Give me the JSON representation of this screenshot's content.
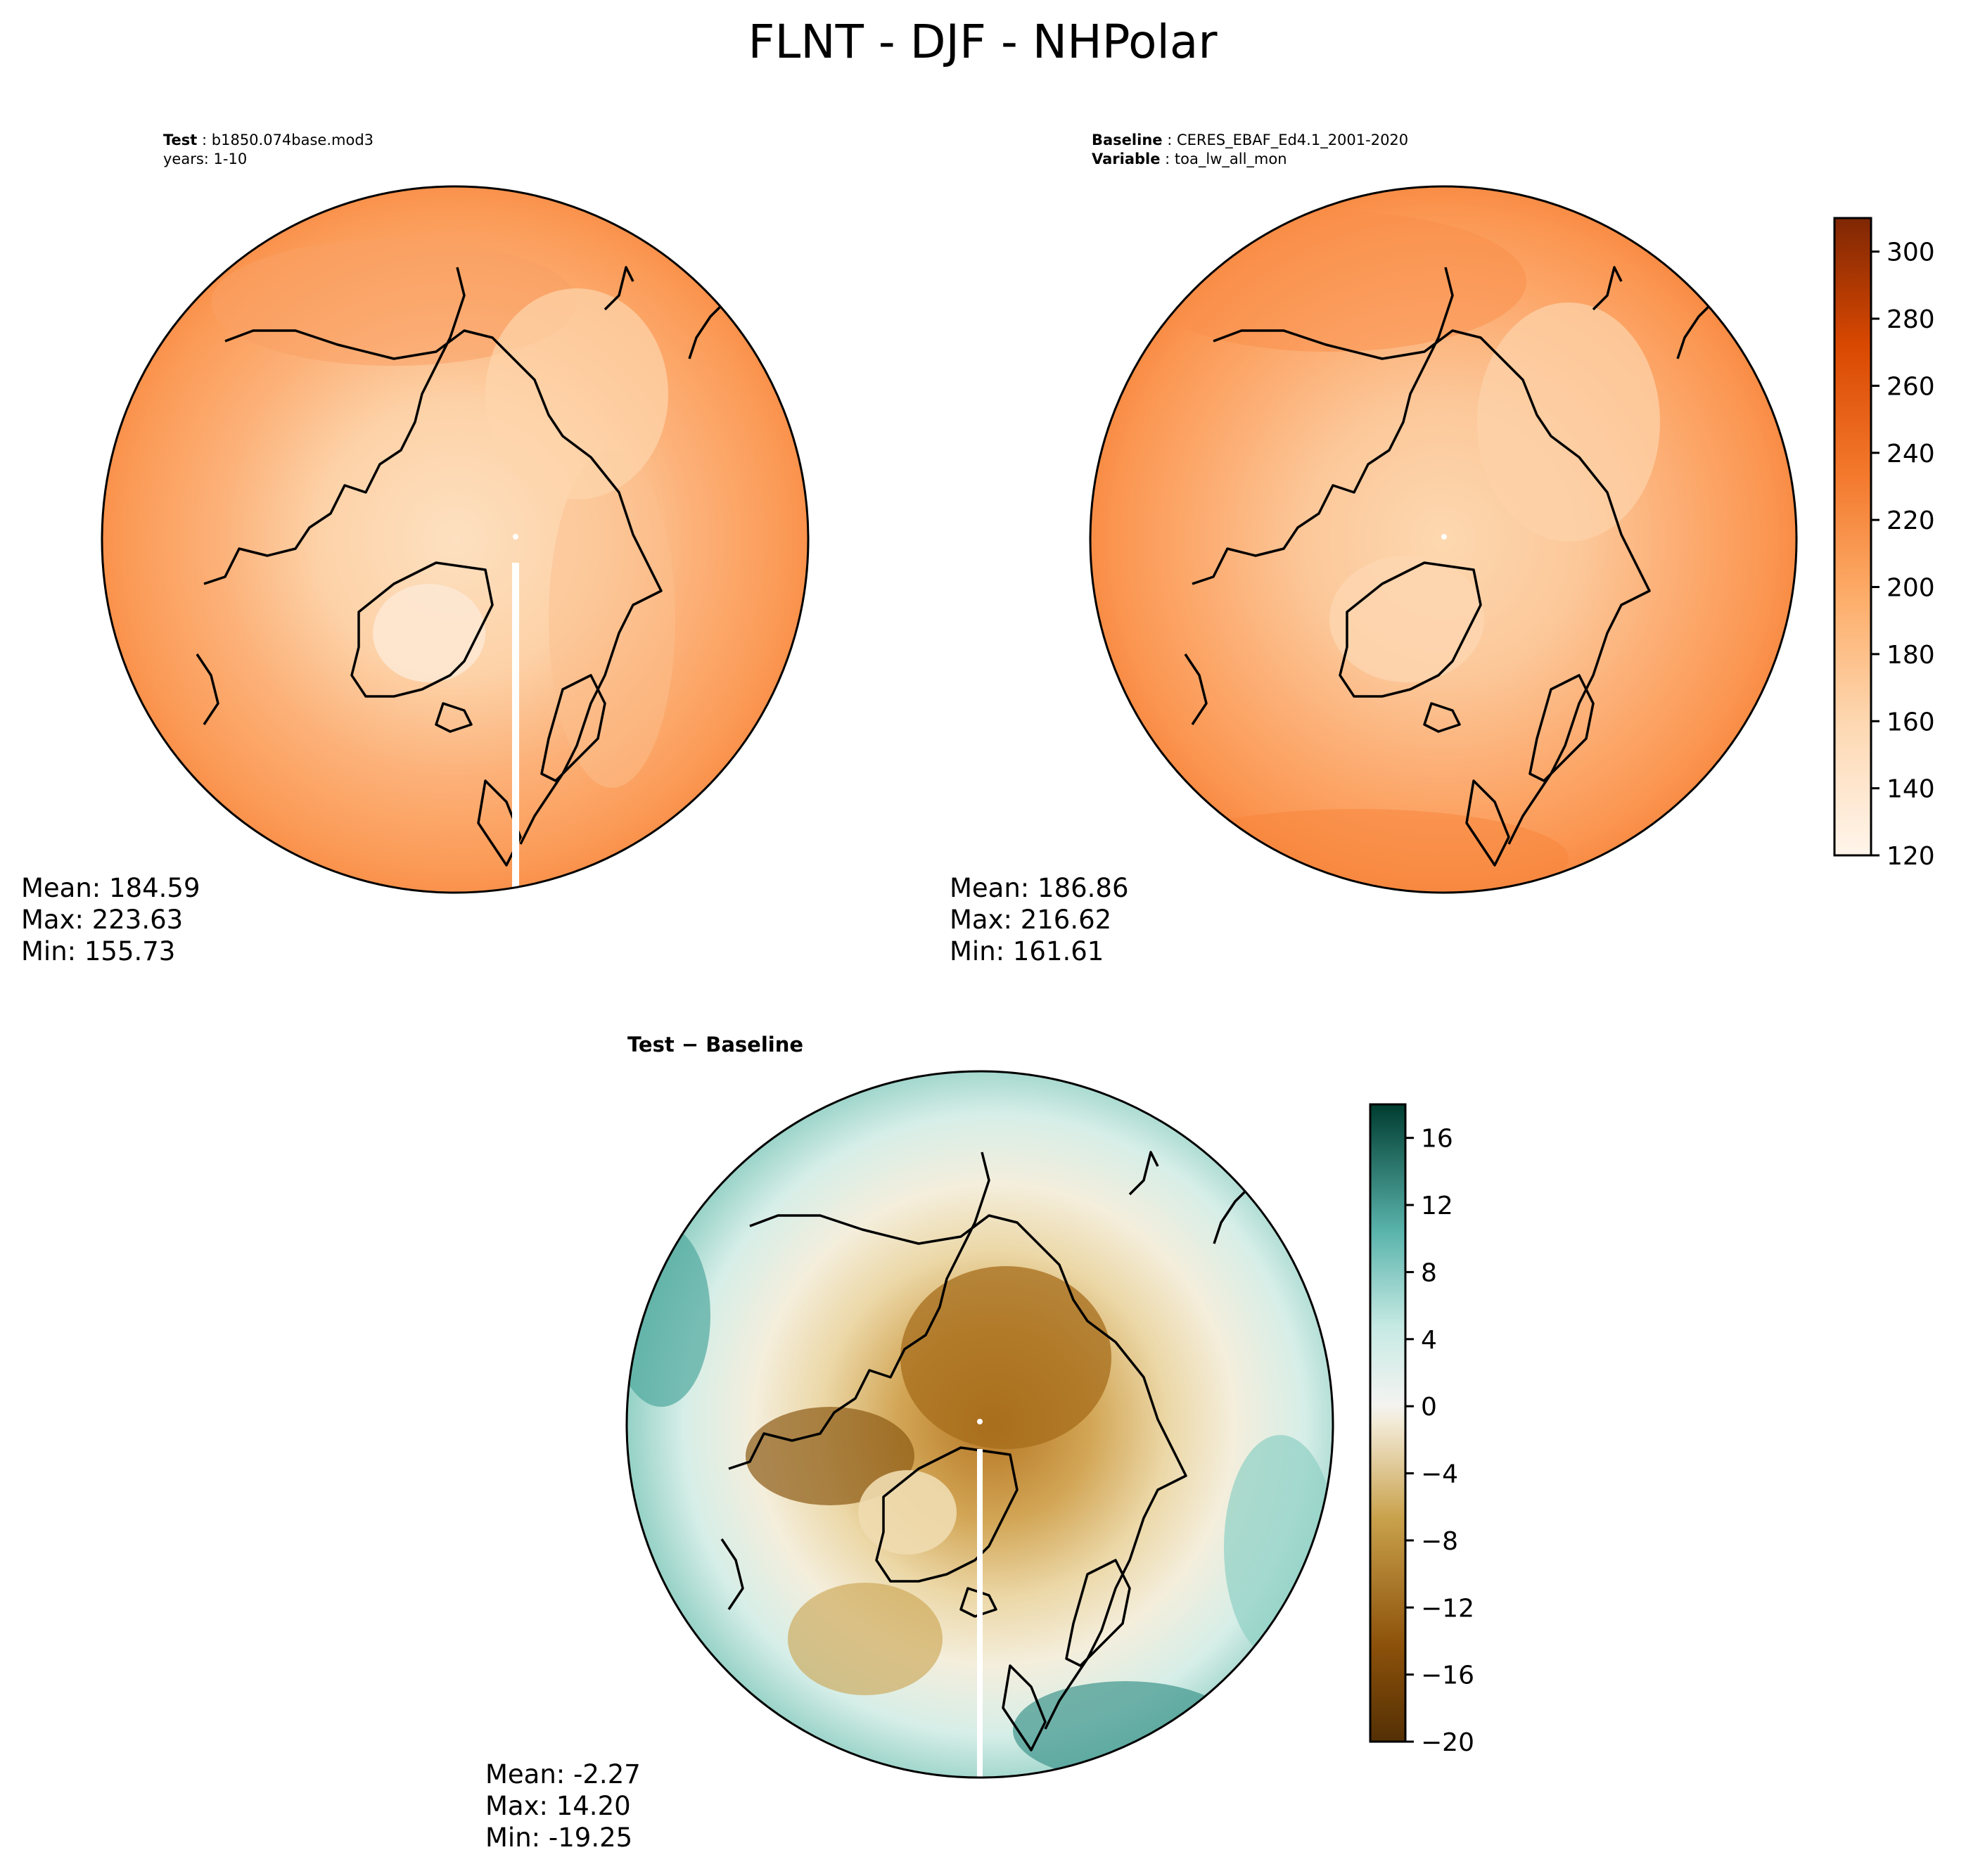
{
  "title": "FLNT - DJF - NHPolar",
  "colors": {
    "test_baseline_cmap": [
      "#fff5eb",
      "#fee6ce",
      "#fdd9b4",
      "#fdc692",
      "#fdb272",
      "#fd9c51",
      "#f9853a",
      "#f16d26",
      "#e55817",
      "#d84a0c",
      "#c43c04",
      "#a83303",
      "#8d2a03"
    ],
    "diff_cmap": [
      "#543005",
      "#7b4a0d",
      "#a66c1b",
      "#c08c3d",
      "#d8b768",
      "#ebd6a0",
      "#f5ead2",
      "#f2f1ee",
      "#d5eeea",
      "#a9dcd5",
      "#73bfb4",
      "#3f968d",
      "#146d64",
      "#003c30"
    ],
    "land_outline": "#000000"
  },
  "chart_data": [
    {
      "type": "heatmap",
      "projection": "north-polar-stereographic",
      "panel": "test",
      "header_lines": [
        {
          "bold": "Test",
          "text": "b1850.074base.mod3"
        },
        {
          "bold": "",
          "text": "years: 1-10"
        }
      ],
      "stats": {
        "mean": "Mean: 184.59",
        "max": "Max: 223.63",
        "min": "Min: 155.73"
      }
    },
    {
      "type": "heatmap",
      "projection": "north-polar-stereographic",
      "panel": "baseline",
      "header_lines": [
        {
          "bold": "Baseline",
          "text": "CERES_EBAF_Ed4.1_2001-2020"
        },
        {
          "bold": "Variable",
          "text": "toa_lw_all_mon"
        }
      ],
      "stats": {
        "mean": "Mean: 186.86",
        "max": "Max: 216.62",
        "min": "Min: 161.61"
      },
      "colorbar": {
        "range": [
          120,
          310
        ],
        "ticks": [
          "300",
          "280",
          "260",
          "240",
          "220",
          "200",
          "180",
          "160",
          "140",
          "120"
        ],
        "tick_values": [
          300,
          280,
          260,
          240,
          220,
          200,
          180,
          160,
          140,
          120
        ]
      }
    },
    {
      "type": "heatmap",
      "projection": "north-polar-stereographic",
      "panel": "difference",
      "title_bold": "Test − Baseline",
      "stats": {
        "mean": "Mean: -2.27",
        "max": "Max: 14.20",
        "min": "Min: -19.25"
      },
      "colorbar": {
        "range": [
          -20,
          18
        ],
        "ticks": [
          "16",
          "12",
          "8",
          "4",
          "0",
          "−4",
          "−8",
          "−12",
          "−16",
          "−20"
        ],
        "tick_values": [
          16,
          12,
          8,
          4,
          0,
          -4,
          -8,
          -12,
          -16,
          -20
        ]
      }
    }
  ]
}
